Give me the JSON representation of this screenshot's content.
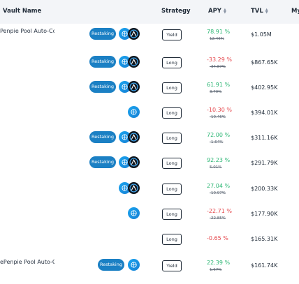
{
  "header": {
    "vault_name": "Vault Name",
    "strategy": "Strategy",
    "apy": "APY",
    "tvl": "TVL",
    "my": "My"
  },
  "rows": [
    {
      "name": "Penpie Pool Auto-Co",
      "restaking": "Restaking",
      "strategy": "Yield",
      "apy": "78.91 %",
      "apy_old": "12.46%",
      "tvl": "$1.05M",
      "apy_sign": "pos"
    },
    {
      "name": "",
      "restaking": "Restaking",
      "strategy": "Long",
      "apy": "-33.29 %",
      "apy_old": "-34.87%",
      "tvl": "$867.65K",
      "apy_sign": "neg"
    },
    {
      "name": "",
      "restaking": "Restaking",
      "strategy": "Long",
      "apy": "61.91 %",
      "apy_old": "3.79%",
      "tvl": "$402.95K",
      "apy_sign": "pos"
    },
    {
      "name": "",
      "restaking": "",
      "strategy": "Long",
      "apy": "-10.30 %",
      "apy_old": "-10.46%",
      "tvl": "$394.01K",
      "apy_sign": "neg"
    },
    {
      "name": "",
      "restaking": "Restaking",
      "strategy": "Long",
      "apy": "72.00 %",
      "apy_old": "-1.64%",
      "tvl": "$311.16K",
      "apy_sign": "pos"
    },
    {
      "name": "",
      "restaking": "Restaking",
      "strategy": "Long",
      "apy": "92.23 %",
      "apy_old": "5.01%",
      "tvl": "$291.79K",
      "apy_sign": "pos"
    },
    {
      "name": "",
      "restaking": "",
      "strategy": "Long",
      "apy": "27.04 %",
      "apy_old": "-10.97%",
      "tvl": "$200.33K",
      "apy_sign": "pos"
    },
    {
      "name": "",
      "restaking": "",
      "strategy": "Long",
      "apy": "-22.71 %",
      "apy_old": "-22.85%",
      "tvl": "$177.90K",
      "apy_sign": "neg"
    },
    {
      "name": "",
      "restaking": "",
      "strategy": "Long",
      "apy": "-0.65 %",
      "apy_old": "",
      "tvl": "$165.31K",
      "apy_sign": "neg"
    },
    {
      "name": "ePenpie Pool Auto-C",
      "restaking": "Restaking",
      "strategy": "Yield",
      "apy": "22.39 %",
      "apy_old": "1.67%",
      "tvl": "$161.74K",
      "apy_sign": "pos"
    }
  ],
  "icons": {
    "chain": "network-globe-icon",
    "protocol": "protocol-logo-icon",
    "sort": "sort-arrows-icon"
  },
  "colors": {
    "positive": "#2bb673",
    "negative": "#e5484d",
    "pill": "#1b80c4",
    "header_bg": "#f3f5f8"
  }
}
